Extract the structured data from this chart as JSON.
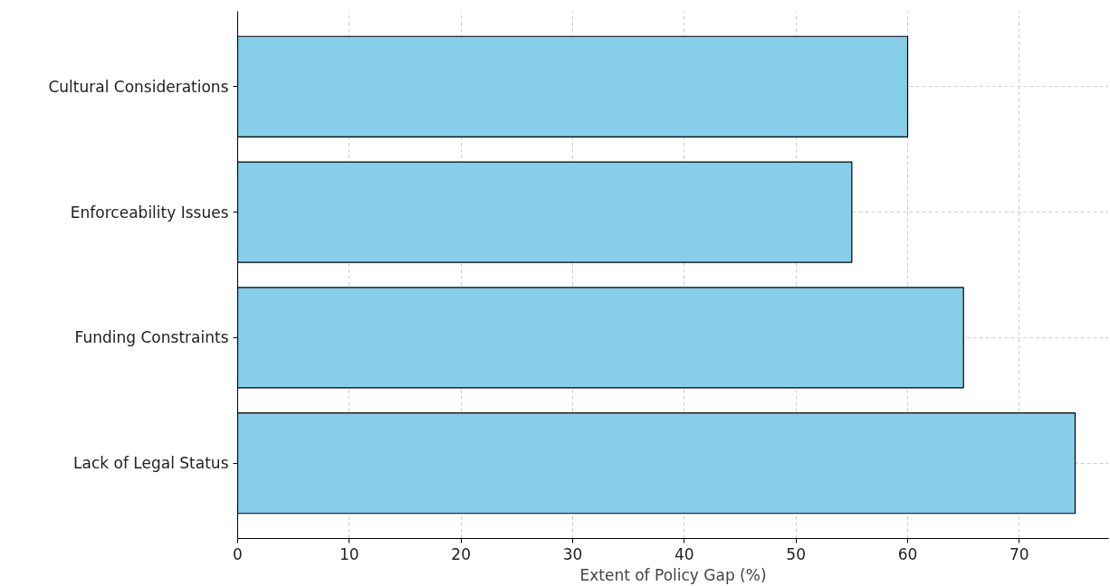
{
  "chart_data": {
    "type": "bar",
    "orientation": "horizontal",
    "xlabel": "Extent of Policy Gap (%)",
    "categories": [
      "Cultural Considerations",
      "Enforceability Issues",
      "Funding Constraints",
      "Lack of Legal Status"
    ],
    "values": [
      60,
      55,
      65,
      75
    ],
    "color": "#87ceeb",
    "xlim": [
      0,
      78
    ],
    "xticks": [
      0,
      10,
      20,
      30,
      40,
      50,
      60,
      70
    ],
    "grid": true
  }
}
